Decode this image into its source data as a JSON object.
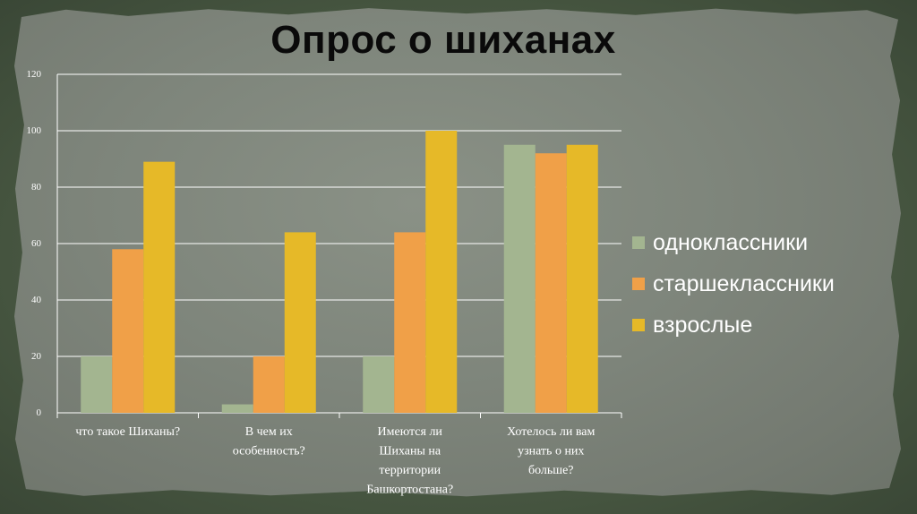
{
  "title": "Опрос о шиханах",
  "chart_data": {
    "type": "bar",
    "categories": [
      [
        "что такое Шиханы?"
      ],
      [
        "В чем их",
        "особенность?"
      ],
      [
        "Имеются ли",
        "Шиханы на",
        "территории",
        "Башкортостана?"
      ],
      [
        "Хотелось ли вам",
        "узнать о них",
        "больше?"
      ]
    ],
    "series": [
      {
        "name": "одноклассники",
        "color": "#a3b590",
        "values": [
          20,
          3,
          20,
          95
        ]
      },
      {
        "name": "старшеклассники",
        "color": "#f0a048",
        "values": [
          58,
          20,
          64,
          92
        ]
      },
      {
        "name": "взрослые",
        "color": "#e6b928",
        "values": [
          89,
          64,
          100,
          95
        ]
      }
    ],
    "ylim": [
      0,
      120
    ],
    "yticks": [
      0,
      20,
      40,
      60,
      80,
      100,
      120
    ],
    "grid": true,
    "legend_position": "right"
  }
}
